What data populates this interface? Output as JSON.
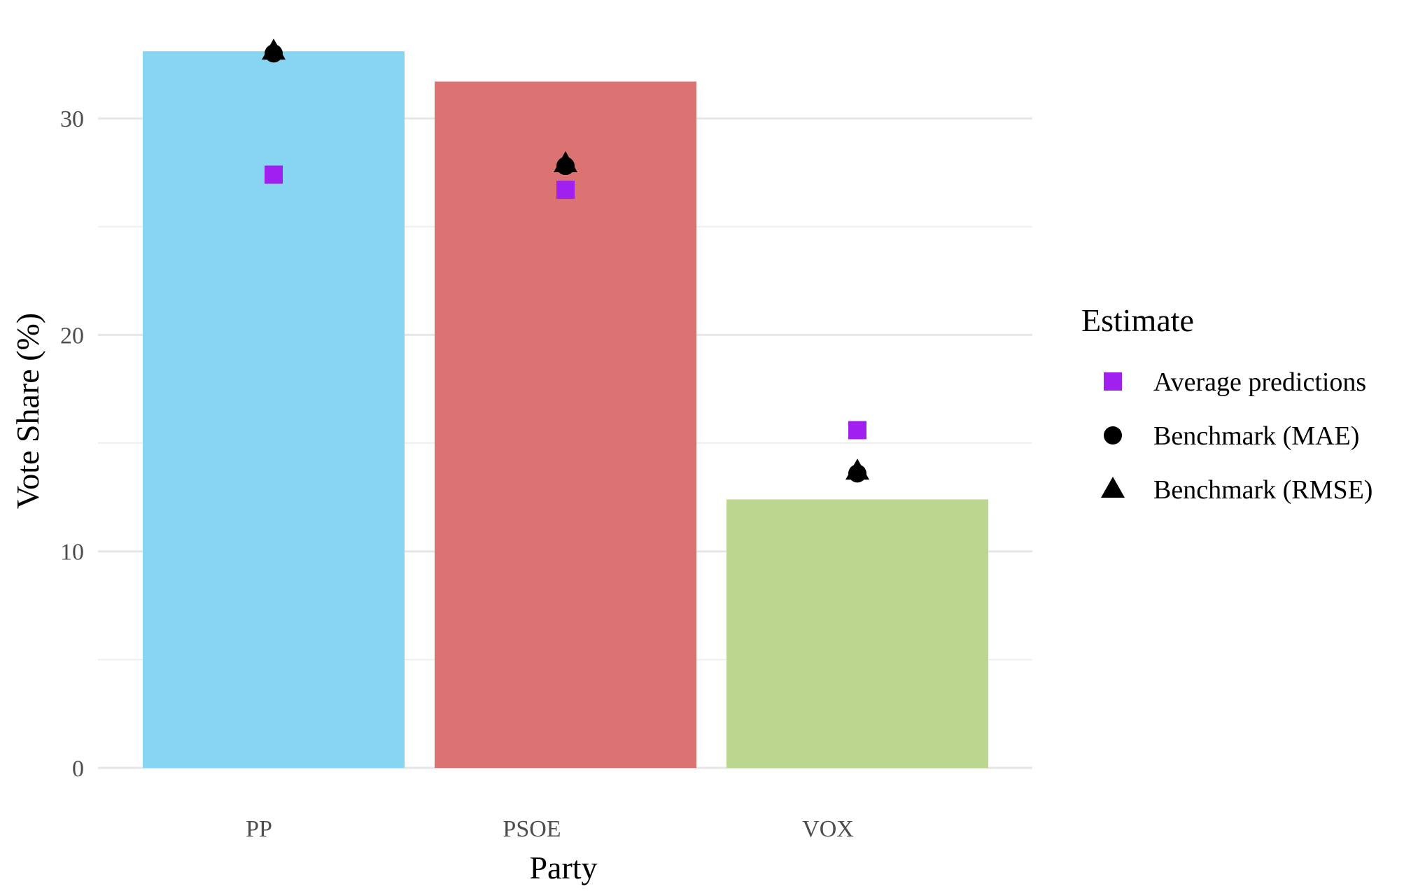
{
  "chart_data": {
    "type": "bar",
    "title": "",
    "xlabel": "Party",
    "ylabel": "Vote Share (%)",
    "ylim": [
      0,
      33.1
    ],
    "yticks": [
      0,
      10,
      20,
      30
    ],
    "grid": true,
    "categories": [
      "PP",
      "PSOE",
      "VOX"
    ],
    "bars": {
      "values": [
        33.1,
        31.7,
        12.4
      ],
      "colors": [
        "#87D5F2",
        "#DB7373",
        "#BBD68E"
      ]
    },
    "series": [
      {
        "name": "Average predictions",
        "marker": "square",
        "color": "#A020F0",
        "values": [
          27.4,
          26.7,
          15.6
        ]
      },
      {
        "name": "Benchmark (MAE)",
        "marker": "circle",
        "color": "#000000",
        "values": [
          33.0,
          27.8,
          13.6
        ]
      },
      {
        "name": "Benchmark (RMSE)",
        "marker": "triangle",
        "color": "#000000",
        "values": [
          33.1,
          27.9,
          13.7
        ]
      }
    ],
    "legend": {
      "title": "Estimate",
      "position": "right"
    }
  }
}
